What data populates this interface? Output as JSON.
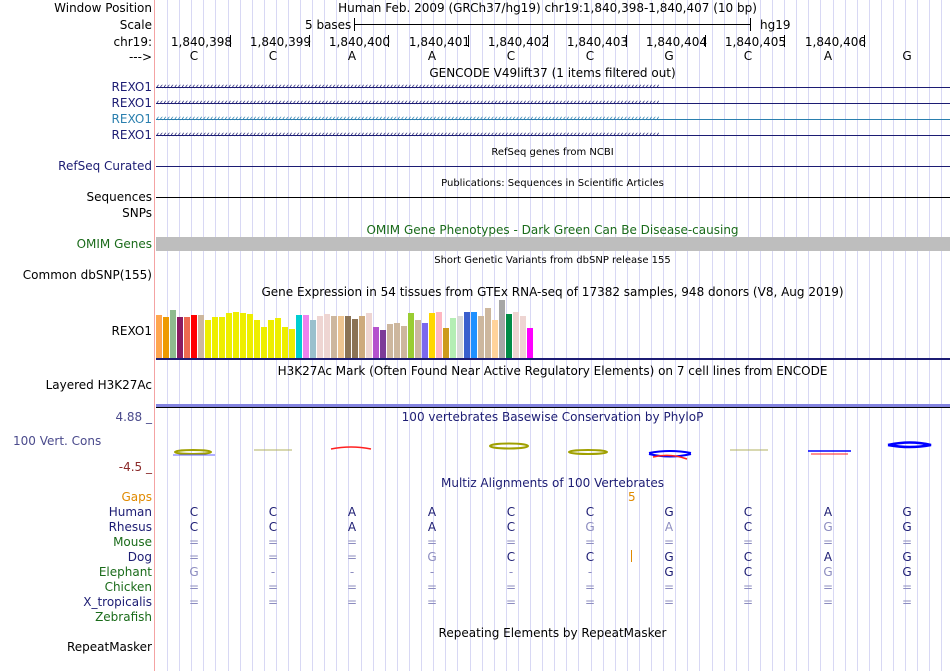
{
  "header": {
    "window_position_label": "Window Position",
    "scale_label": "Scale",
    "chrom_label": "chr19:",
    "strand_label": "--->",
    "title": "Human Feb. 2009 (GRCh37/hg19)   chr19:1,840,398-1,840,407 (10 bp)",
    "scale_text": "5 bases",
    "assembly": "hg19",
    "positions": [
      "1,840,398",
      "1,840,399",
      "1,840,400",
      "1,840,401",
      "1,840,402",
      "1,840,403",
      "1,840,404",
      "1,840,405",
      "1,840,406"
    ],
    "bases": [
      "C",
      "C",
      "A",
      "A",
      "C",
      "C",
      "G",
      "C",
      "A",
      "G"
    ]
  },
  "tracks": {
    "gencode": {
      "title": "GENCODE V49lift37 (1 items filtered out)",
      "genes": [
        {
          "label": "REXO1",
          "color": "#1c1c73"
        },
        {
          "label": "REXO1",
          "color": "#1c1c73"
        },
        {
          "label": "REXO1",
          "color": "#2a7fae"
        },
        {
          "label": "REXO1",
          "color": "#1c1c73"
        }
      ]
    },
    "refseq": {
      "title": "RefSeq genes from NCBI",
      "label": "RefSeq Curated"
    },
    "publications": {
      "title": "Publications: Sequences in Scientific Articles",
      "label1": "Sequences",
      "label2": "SNPs"
    },
    "omim": {
      "title": "OMIM Gene Phenotypes - Dark Green Can Be Disease-causing",
      "label": "OMIM Genes"
    },
    "dbsnp": {
      "title": "Short Genetic Variants from dbSNP release 155",
      "label": "Common dbSNP(155)"
    },
    "gtex": {
      "title": "Gene Expression in 54 tissues from GTEx RNA-seq of 17382 samples, 948 donors (V8, Aug 2019)",
      "label": "REXO1"
    },
    "h3k27ac": {
      "title": "H3K27Ac Mark (Often Found Near Active Regulatory Elements) on 7 cell lines from ENCODE",
      "label": "Layered H3K27Ac"
    },
    "phylop": {
      "title": "100 vertebrates Basewise Conservation by PhyloP",
      "label": "100 Vert. Cons",
      "max": "4.88 _",
      "min": "-4.5 _"
    },
    "multiz": {
      "title": "Multiz Alignments of 100 Vertebrates",
      "gaps_label": "Gaps",
      "gap_count": "5",
      "species": [
        {
          "name": "Human",
          "color": "#1c1c73",
          "row": [
            "C",
            "C",
            "A",
            "A",
            "C",
            "C",
            "G",
            "C",
            "A",
            "G"
          ],
          "dim": [
            0,
            0,
            0,
            0,
            0,
            0,
            0,
            0,
            0,
            0
          ]
        },
        {
          "name": "Rhesus",
          "color": "#1c1c73",
          "row": [
            "C",
            "C",
            "A",
            "A",
            "C",
            "G",
            "A",
            "C",
            "G",
            "G"
          ],
          "dim": [
            0,
            0,
            0,
            0,
            0,
            1,
            1,
            0,
            1,
            0
          ]
        },
        {
          "name": "Mouse",
          "color": "#1a6b1a",
          "row": [
            "=",
            "=",
            "=",
            "=",
            "=",
            "=",
            "=",
            "=",
            "=",
            "="
          ],
          "dim": [
            1,
            1,
            1,
            1,
            1,
            1,
            1,
            1,
            1,
            1
          ]
        },
        {
          "name": "Dog",
          "color": "#1c1c73",
          "row": [
            "=",
            "=",
            "=",
            "G",
            "C",
            "C",
            "G",
            "C",
            "A",
            "G"
          ],
          "dim": [
            1,
            1,
            1,
            1,
            0,
            0,
            0,
            0,
            0,
            0
          ]
        },
        {
          "name": "Elephant",
          "color": "#1a6b1a",
          "row": [
            "G",
            "-",
            "-",
            "-",
            "-",
            "-",
            "G",
            "C",
            "G",
            "G"
          ],
          "dim": [
            1,
            1,
            1,
            1,
            1,
            1,
            0,
            0,
            1,
            0
          ]
        },
        {
          "name": "Chicken",
          "color": "#1a6b1a",
          "row": [
            "=",
            "=",
            "=",
            "=",
            "=",
            "=",
            "=",
            "=",
            "=",
            "="
          ],
          "dim": [
            1,
            1,
            1,
            1,
            1,
            1,
            1,
            1,
            1,
            1
          ]
        },
        {
          "name": "X_tropicalis",
          "color": "#1c1c73",
          "row": [
            "=",
            "=",
            "=",
            "=",
            "=",
            "=",
            "=",
            "=",
            "=",
            "="
          ],
          "dim": [
            1,
            1,
            1,
            1,
            1,
            1,
            1,
            1,
            1,
            1
          ]
        },
        {
          "name": "Zebrafish",
          "color": "#1a6b1a",
          "row": [
            "",
            "",
            "",
            "",
            "",
            "",
            "",
            "",
            "",
            ""
          ],
          "dim": [
            0,
            0,
            0,
            0,
            0,
            0,
            0,
            0,
            0,
            0
          ]
        }
      ]
    },
    "repeatmasker": {
      "title": "Repeating Elements by RepeatMasker",
      "label": "RepeatMasker"
    }
  },
  "chart_data": {
    "type": "bar",
    "title": "Gene Expression in 54 tissues from GTEx RNA-seq of 17382 samples, 948 donors (V8, Aug 2019)",
    "xlabel": "",
    "ylabel": "",
    "values": [
      0.74,
      0.7,
      0.83,
      0.7,
      0.7,
      0.74,
      0.74,
      0.65,
      0.7,
      0.7,
      0.77,
      0.79,
      0.77,
      0.76,
      0.66,
      0.53,
      0.66,
      0.69,
      0.53,
      0.5,
      0.74,
      0.74,
      0.66,
      0.72,
      0.76,
      0.72,
      0.72,
      0.72,
      0.67,
      0.72,
      0.77,
      0.53,
      0.48,
      0.58,
      0.61,
      0.56,
      0.77,
      0.66,
      0.6,
      0.77,
      0.79,
      0.51,
      0.69,
      0.72,
      0.79,
      0.8,
      0.72,
      0.86,
      0.66,
      1.0,
      0.75,
      0.79,
      0.72,
      0.51
    ],
    "colors": [
      "#FFA54F",
      "#EE9A00",
      "#8FBC8F",
      "#8B1C62",
      "#EE6A50",
      "#FF0000",
      "#CDB79E",
      "#EEEE00",
      "#EEEE00",
      "#EEEE00",
      "#EEEE00",
      "#EEEE00",
      "#EEEE00",
      "#EEEE00",
      "#EEEE00",
      "#EEEE00",
      "#EEEE00",
      "#EEEE00",
      "#EEEE00",
      "#EEEE00",
      "#00CED1",
      "#EE82EE",
      "#9AC0CD",
      "#EED5D2",
      "#EED5D2",
      "#CDB79E",
      "#EEC591",
      "#8B7355",
      "#8B7355",
      "#CDAA7D",
      "#EED5D2",
      "#B452CD",
      "#7D3C98",
      "#CDB79E",
      "#CDB79E",
      "#CDB79E",
      "#9ACD32",
      "#CDB79E",
      "#7B68EE",
      "#FFD700",
      "#FFB6C1",
      "#CD9B1D",
      "#B4EEB4",
      "#D9D9D9",
      "#3A5FCD",
      "#1E90FF",
      "#CDB79E",
      "#CDB79E",
      "#FFD39B",
      "#A6A6A6",
      "#008B45",
      "#EED5D2",
      "#EED5D2",
      "#FF00FF"
    ]
  }
}
